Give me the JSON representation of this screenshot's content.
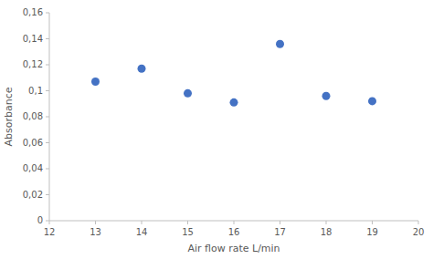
{
  "chart_data": {
    "type": "scatter",
    "x": [
      13,
      14,
      15,
      16,
      17,
      18,
      19
    ],
    "values": [
      0.107,
      0.117,
      0.098,
      0.091,
      0.136,
      0.096,
      0.092
    ],
    "color": "#4472C4",
    "xlabel": "Air flow rate L/min",
    "ylabel": "Absorbance",
    "xlim": [
      12,
      20
    ],
    "ylim": [
      0,
      0.16
    ],
    "xticks": [
      12,
      13,
      14,
      15,
      16,
      17,
      18,
      19,
      20
    ],
    "yticks": [
      0,
      {
        "value": 0.02,
        "label": "0,02"
      },
      {
        "value": 0.04,
        "label": "0,04"
      },
      {
        "value": 0.06,
        "label": "0,06"
      },
      {
        "value": 0.08,
        "label": "0,08"
      },
      {
        "value": 0.1,
        "label": "0,1"
      },
      {
        "value": 0.12,
        "label": "0,12"
      },
      {
        "value": 0.14,
        "label": "0,14"
      },
      {
        "value": 0.16,
        "label": "0,16"
      }
    ],
    "grid": false
  }
}
